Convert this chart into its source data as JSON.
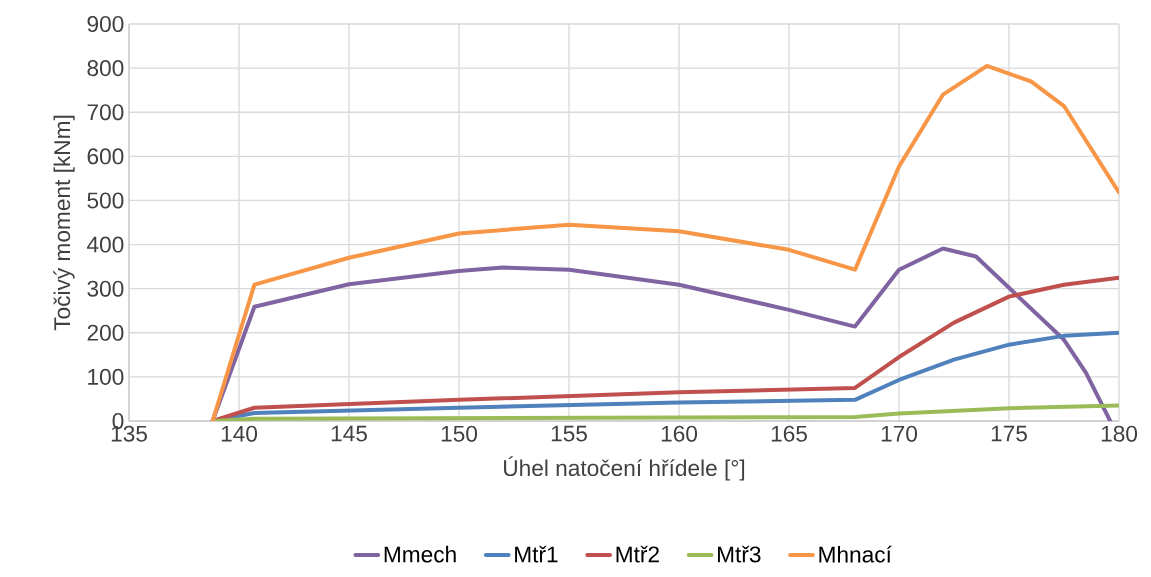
{
  "chart_data": {
    "type": "line",
    "xlabel": "Úhel natočení hřídele [°]",
    "ylabel": "Točivý moment [kNm]",
    "xlim": [
      135,
      180
    ],
    "xticks": [
      135,
      140,
      145,
      150,
      155,
      160,
      165,
      170,
      175,
      180
    ],
    "ylim": [
      0,
      900
    ],
    "yticks": [
      0,
      100,
      200,
      300,
      400,
      500,
      600,
      700,
      800,
      900
    ],
    "grid": true,
    "legend": "bottom",
    "marker": "none",
    "line_style": "solid",
    "series": [
      {
        "name": "Mmech",
        "color": "#8064a2",
        "x": [
          138.8,
          140.7,
          145,
          150,
          152,
          155,
          160,
          165,
          168,
          170,
          172,
          173.5,
          175,
          177.5,
          178.5,
          179.6
        ],
        "values": [
          0,
          259,
          310,
          340,
          348,
          343,
          309,
          252,
          214,
          343,
          391,
          373,
          302,
          184,
          109,
          0
        ]
      },
      {
        "name": "Mtř1",
        "color": "#4f81bd",
        "x": [
          138.8,
          140.7,
          150,
          160,
          168,
          170,
          172.5,
          175,
          177.5,
          180
        ],
        "values": [
          0,
          18,
          30,
          42,
          48,
          93,
          139,
          173,
          193,
          200
        ]
      },
      {
        "name": "Mtř2",
        "color": "#c0504d",
        "x": [
          138.8,
          140.7,
          150,
          160,
          168,
          170,
          172.5,
          175,
          177.5,
          180
        ],
        "values": [
          0,
          30,
          48,
          65,
          75,
          145,
          223,
          282,
          309,
          325
        ]
      },
      {
        "name": "Mtř3",
        "color": "#9bbb59",
        "x": [
          138.8,
          140.7,
          168,
          170,
          175,
          180
        ],
        "values": [
          0,
          5,
          9,
          17,
          29,
          35
        ]
      },
      {
        "name": "Mhnací",
        "color": "#f79646",
        "x": [
          138.8,
          140.7,
          145,
          150,
          155,
          160,
          165,
          168,
          170,
          172,
          174,
          176,
          177.5,
          180
        ],
        "values": [
          0,
          309,
          370,
          425,
          445,
          430,
          388,
          343,
          577,
          740,
          805,
          770,
          714,
          518
        ]
      }
    ]
  }
}
